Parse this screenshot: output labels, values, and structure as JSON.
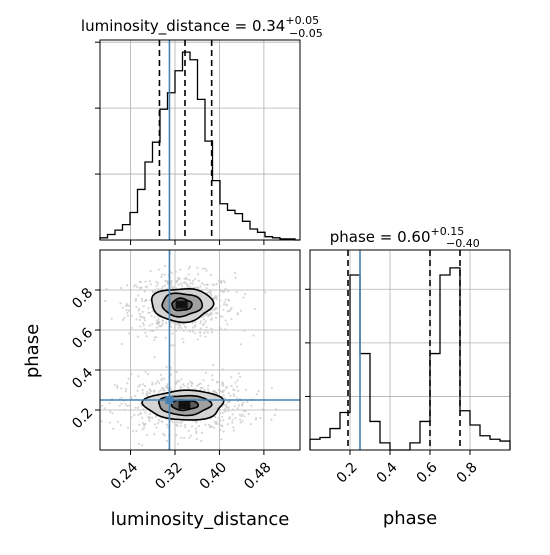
{
  "chart_data": [
    {
      "panel": "luminosity_distance-marginal",
      "type": "histogram",
      "title": {
        "main": "luminosity_distance = 0.34",
        "sup": "+0.05",
        "sub": "−0.05"
      },
      "xlim": [
        0.185,
        0.545
      ],
      "x_ticks": [
        0.24,
        0.32,
        0.4,
        0.48
      ],
      "x_tick_labels": [],
      "bin_edges": [
        0.185,
        0.1985,
        0.212,
        0.2255,
        0.239,
        0.2525,
        0.266,
        0.2795,
        0.293,
        0.3065,
        0.32,
        0.3335,
        0.347,
        0.3605,
        0.374,
        0.3875,
        0.401,
        0.4145,
        0.428,
        0.4415,
        0.455,
        0.4685,
        0.482,
        0.4955,
        0.509,
        0.5225,
        0.536,
        0.545
      ],
      "counts": [
        2,
        5,
        9,
        14,
        25,
        46,
        71,
        89,
        119,
        134,
        154,
        171,
        164,
        128,
        90,
        54,
        33,
        27,
        24,
        17,
        10,
        7,
        3,
        2,
        1,
        1,
        0
      ],
      "ylim": [
        0,
        182
      ],
      "y_ticks": [
        60,
        120,
        180
      ],
      "quantiles": [
        0.292,
        0.338,
        0.386
      ],
      "truth": 0.31,
      "line_color": "#000000",
      "truth_color": "#4682b4",
      "grid": true
    },
    {
      "panel": "phase-vs-luminosity_distance",
      "type": "scatter-contour",
      "xlabel": "luminosity_distance",
      "ylabel": "phase",
      "xlim": [
        0.185,
        0.545
      ],
      "ylim": [
        0.0,
        1.0
      ],
      "x_ticks": [
        0.24,
        0.32,
        0.4,
        0.48
      ],
      "x_tick_labels": [
        "0.24",
        "0.32",
        "0.40",
        "0.48"
      ],
      "y_ticks": [
        0.2,
        0.4,
        0.6,
        0.8
      ],
      "y_tick_labels": [
        "0.2",
        "0.4",
        "0.6",
        "0.8"
      ],
      "modes": [
        {
          "center": [
            0.332,
            0.727
          ],
          "sigma": [
            0.038,
            0.062
          ]
        },
        {
          "center": [
            0.337,
            0.225
          ],
          "sigma": [
            0.048,
            0.055
          ]
        }
      ],
      "contours": [
        {
          "mode": 0,
          "level": 1,
          "rx": 0.018,
          "ry": 0.03,
          "fill": "#555555"
        },
        {
          "mode": 0,
          "level": 2,
          "rx": 0.036,
          "ry": 0.057,
          "fill": "#9a9a9a"
        },
        {
          "mode": 0,
          "level": 3,
          "rx": 0.055,
          "ry": 0.083,
          "fill": "#d2d2d2"
        },
        {
          "mode": 1,
          "level": 1,
          "rx": 0.024,
          "ry": 0.025,
          "fill": "#555555"
        },
        {
          "mode": 1,
          "level": 2,
          "rx": 0.047,
          "ry": 0.049,
          "fill": "#9a9a9a"
        },
        {
          "mode": 1,
          "level": 3,
          "rx": 0.071,
          "ry": 0.074,
          "fill": "#d2d2d2"
        }
      ],
      "truth": [
        0.31,
        0.25
      ],
      "truth_color": "#4682b4",
      "point_color": "#c8c8c8",
      "grid": true
    },
    {
      "panel": "phase-marginal",
      "type": "histogram",
      "title": {
        "main": "phase = 0.60",
        "sup": "+0.15",
        "sub": "−0.40"
      },
      "xlabel": "phase",
      "xlim": [
        0.0,
        1.0
      ],
      "x_ticks": [
        0.2,
        0.4,
        0.6,
        0.8
      ],
      "x_tick_labels": [
        "0.2",
        "0.4",
        "0.6",
        "0.8"
      ],
      "bin_edges": [
        0.0,
        0.05,
        0.1,
        0.15,
        0.2,
        0.25,
        0.3,
        0.35,
        0.4,
        0.45,
        0.5,
        0.55,
        0.6,
        0.65,
        0.7,
        0.75,
        0.8,
        0.85,
        0.9,
        0.95,
        1.0
      ],
      "counts": [
        6,
        7,
        12,
        21,
        98,
        54,
        16,
        4,
        0,
        0,
        4,
        16,
        54,
        98,
        102,
        22,
        14,
        8,
        6,
        5
      ],
      "ylim": [
        0,
        112
      ],
      "y_ticks": [
        30,
        60,
        90
      ],
      "quantiles": [
        0.19,
        0.6,
        0.75
      ],
      "truth": 0.25,
      "line_color": "#000000",
      "truth_color": "#4682b4",
      "grid": true
    }
  ]
}
